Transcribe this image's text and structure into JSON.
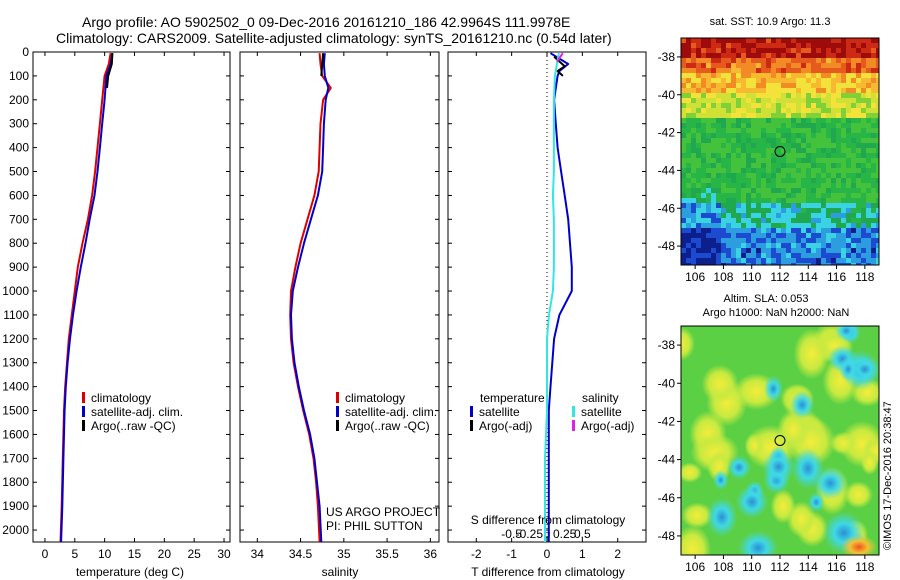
{
  "header": {
    "line1": "Argo profile: AO 5902502_0 09-Dec-2016 20161210_186 42.9964S 111.9978E",
    "line2": "Climatology: CARS2009. Satellite-adjusted climatology: synTS_20161210.nc (0.54d later)"
  },
  "colors": {
    "climatology": "#dd0000",
    "satellite": "#0000cc",
    "argo": "#000000",
    "salinity_satellite": "#33e6e6",
    "salinity_argo": "#e020e0"
  },
  "credits": {
    "project": "US ARGO PROJECT",
    "pi": "PI: PHIL SUTTON",
    "imos": "©IMOS 17-Dec-2016 20:38:47"
  },
  "legend_profiles": {
    "climatology": "climatology",
    "satellite": "satellite-adj. clim.",
    "argo": "Argo(..raw -QC)"
  },
  "legend_diff": {
    "temperature_title": "temperature",
    "salinity_title": "salinity",
    "satellite": "satellite",
    "argo": "Argo(-adj)"
  },
  "map_titles": {
    "sst": "sat. SST: 10.9 Argo: 11.3",
    "sla_line1": "Altim. SLA: 0.053",
    "sla_line2": "Argo h1000: NaN h2000: NaN"
  },
  "chart_data": [
    {
      "type": "line",
      "id": "temperature",
      "xlabel": "temperature (deg C)",
      "ylim": [
        2050,
        0
      ],
      "xlim": [
        -2,
        31
      ],
      "xticks": [
        0,
        5,
        10,
        15,
        20,
        25,
        30
      ],
      "yticks": [
        0,
        100,
        200,
        300,
        400,
        500,
        600,
        700,
        800,
        900,
        1000,
        1100,
        1200,
        1300,
        1400,
        1500,
        1600,
        1700,
        1800,
        1900,
        2000
      ],
      "series": [
        {
          "name": "climatology",
          "color": "#dd0000",
          "depth": [
            5,
            50,
            100,
            200,
            300,
            400,
            500,
            600,
            700,
            800,
            900,
            1000,
            1100,
            1200,
            1300,
            1400,
            1500,
            1700,
            1900,
            2050
          ],
          "values": [
            11.0,
            10.7,
            10.0,
            9.6,
            9.2,
            8.8,
            8.4,
            7.9,
            7.2,
            6.3,
            5.5,
            5.0,
            4.5,
            4.0,
            3.7,
            3.4,
            3.2,
            3.0,
            2.8,
            2.6
          ]
        },
        {
          "name": "satellite-adj. clim.",
          "color": "#0000cc",
          "depth": [
            5,
            50,
            100,
            200,
            300,
            400,
            500,
            600,
            700,
            800,
            900,
            1000,
            1100,
            1200,
            1300,
            1400,
            1500,
            1700,
            1900,
            2050
          ],
          "values": [
            11.3,
            11.0,
            10.3,
            10.0,
            9.6,
            9.2,
            8.8,
            8.3,
            7.5,
            6.8,
            6.0,
            5.3,
            4.7,
            4.2,
            3.8,
            3.5,
            3.3,
            3.1,
            2.9,
            2.7
          ]
        },
        {
          "name": "Argo(..raw -QC)",
          "color": "#000000",
          "depth": [
            5,
            50,
            100,
            150
          ],
          "values": [
            11.3,
            11.2,
            10.6,
            10.4
          ]
        }
      ]
    },
    {
      "type": "line",
      "id": "salinity",
      "xlabel": "salinity",
      "ylim": [
        2050,
        0
      ],
      "xlim": [
        33.8,
        36.1
      ],
      "xticks": [
        34,
        34.5,
        35,
        35.5,
        36
      ],
      "series": [
        {
          "name": "climatology",
          "color": "#dd0000",
          "depth": [
            5,
            50,
            100,
            150,
            200,
            300,
            400,
            500,
            600,
            700,
            800,
            900,
            1000,
            1100,
            1200,
            1300,
            1400,
            1500,
            1600,
            1700,
            1800,
            1900,
            2050
          ],
          "values": [
            34.72,
            34.73,
            34.75,
            34.85,
            34.76,
            34.73,
            34.72,
            34.71,
            34.66,
            34.58,
            34.5,
            34.44,
            34.39,
            34.38,
            34.39,
            34.42,
            34.47,
            34.53,
            34.6,
            34.65,
            34.68,
            34.7,
            34.72
          ]
        },
        {
          "name": "satellite-adj. clim.",
          "color": "#0000cc",
          "depth": [
            5,
            50,
            100,
            150,
            200,
            300,
            400,
            500,
            600,
            700,
            800,
            900,
            1000,
            1100,
            1200,
            1300,
            1400,
            1500,
            1600,
            1700,
            1800,
            1900,
            2050
          ],
          "values": [
            34.78,
            34.77,
            34.78,
            34.82,
            34.79,
            34.77,
            34.76,
            34.75,
            34.7,
            34.62,
            34.54,
            34.47,
            34.41,
            34.39,
            34.4,
            34.43,
            34.48,
            34.54,
            34.61,
            34.66,
            34.69,
            34.72,
            34.74
          ]
        },
        {
          "name": "Argo(..raw -QC)",
          "color": "#000000",
          "depth": [
            5,
            50,
            100
          ],
          "values": [
            34.76,
            34.75,
            34.74
          ]
        }
      ]
    },
    {
      "type": "line",
      "id": "difference",
      "xlabel": "T difference from climatology",
      "secondary_xlabel": "S difference from climatology",
      "ylim": [
        2050,
        0
      ],
      "xlim": [
        -2.8,
        2.8
      ],
      "xticks": [
        -2,
        -1,
        0,
        1,
        2
      ],
      "secondary_xticks": [
        -0.5,
        -0.25,
        0,
        0.25,
        0.5
      ],
      "zero_line": "dotted",
      "series": [
        {
          "name": "temperature satellite",
          "color": "#0000cc",
          "depth": [
            5,
            50,
            80,
            100,
            200,
            300,
            400,
            500,
            600,
            700,
            800,
            900,
            1000,
            1100,
            1200,
            1300,
            1400,
            1500,
            1700,
            1900,
            2050
          ],
          "values": [
            0.1,
            0.6,
            0.35,
            0.3,
            0.2,
            0.25,
            0.3,
            0.4,
            0.5,
            0.6,
            0.65,
            0.7,
            0.7,
            0.35,
            0.2,
            0.15,
            0.1,
            0.05,
            0.05,
            0.05,
            0.05
          ]
        },
        {
          "name": "temperature Argo(-adj)",
          "color": "#000000",
          "depth": [
            20,
            60,
            80,
            100
          ],
          "values": [
            0.2,
            0.5,
            0.3,
            0.45
          ]
        },
        {
          "name": "salinity satellite",
          "color": "#33e6e6",
          "depth": [
            5,
            50,
            100,
            200,
            300,
            400,
            500,
            600,
            700,
            800,
            900,
            1000,
            1100,
            1200,
            1300,
            1400,
            1500,
            1700,
            1900,
            2050
          ],
          "values": [
            0.06,
            0.05,
            0.04,
            0.035,
            0.035,
            0.035,
            0.035,
            0.03,
            0.035,
            0.035,
            0.035,
            0.03,
            0.01,
            0.0,
            0.0,
            0.0,
            0.0,
            -0.01,
            -0.01,
            -0.01
          ]
        },
        {
          "name": "salinity Argo(-adj)",
          "color": "#e020e0",
          "depth": [
            5,
            40
          ],
          "values": [
            0.08,
            0.05
          ]
        }
      ]
    },
    {
      "type": "heatmap",
      "id": "sst-map",
      "title": "sat. SST: 10.9 Argo: 11.3",
      "xlim": [
        105,
        119
      ],
      "ylim": [
        -49,
        -37
      ],
      "xticks": [
        106,
        108,
        110,
        112,
        114,
        116,
        118
      ],
      "yticks": [
        -38,
        -40,
        -42,
        -44,
        -46,
        -48
      ],
      "marker": {
        "lon": 112.0,
        "lat": -43.0
      }
    },
    {
      "type": "heatmap",
      "id": "sla-map",
      "title": "Altim. SLA: 0.053",
      "xlim": [
        105,
        119
      ],
      "ylim": [
        -49,
        -37
      ],
      "xticks": [
        106,
        108,
        110,
        112,
        114,
        116,
        118
      ],
      "yticks": [
        -38,
        -40,
        -42,
        -44,
        -46,
        -48
      ],
      "marker": {
        "lon": 112.0,
        "lat": -43.0
      }
    }
  ]
}
